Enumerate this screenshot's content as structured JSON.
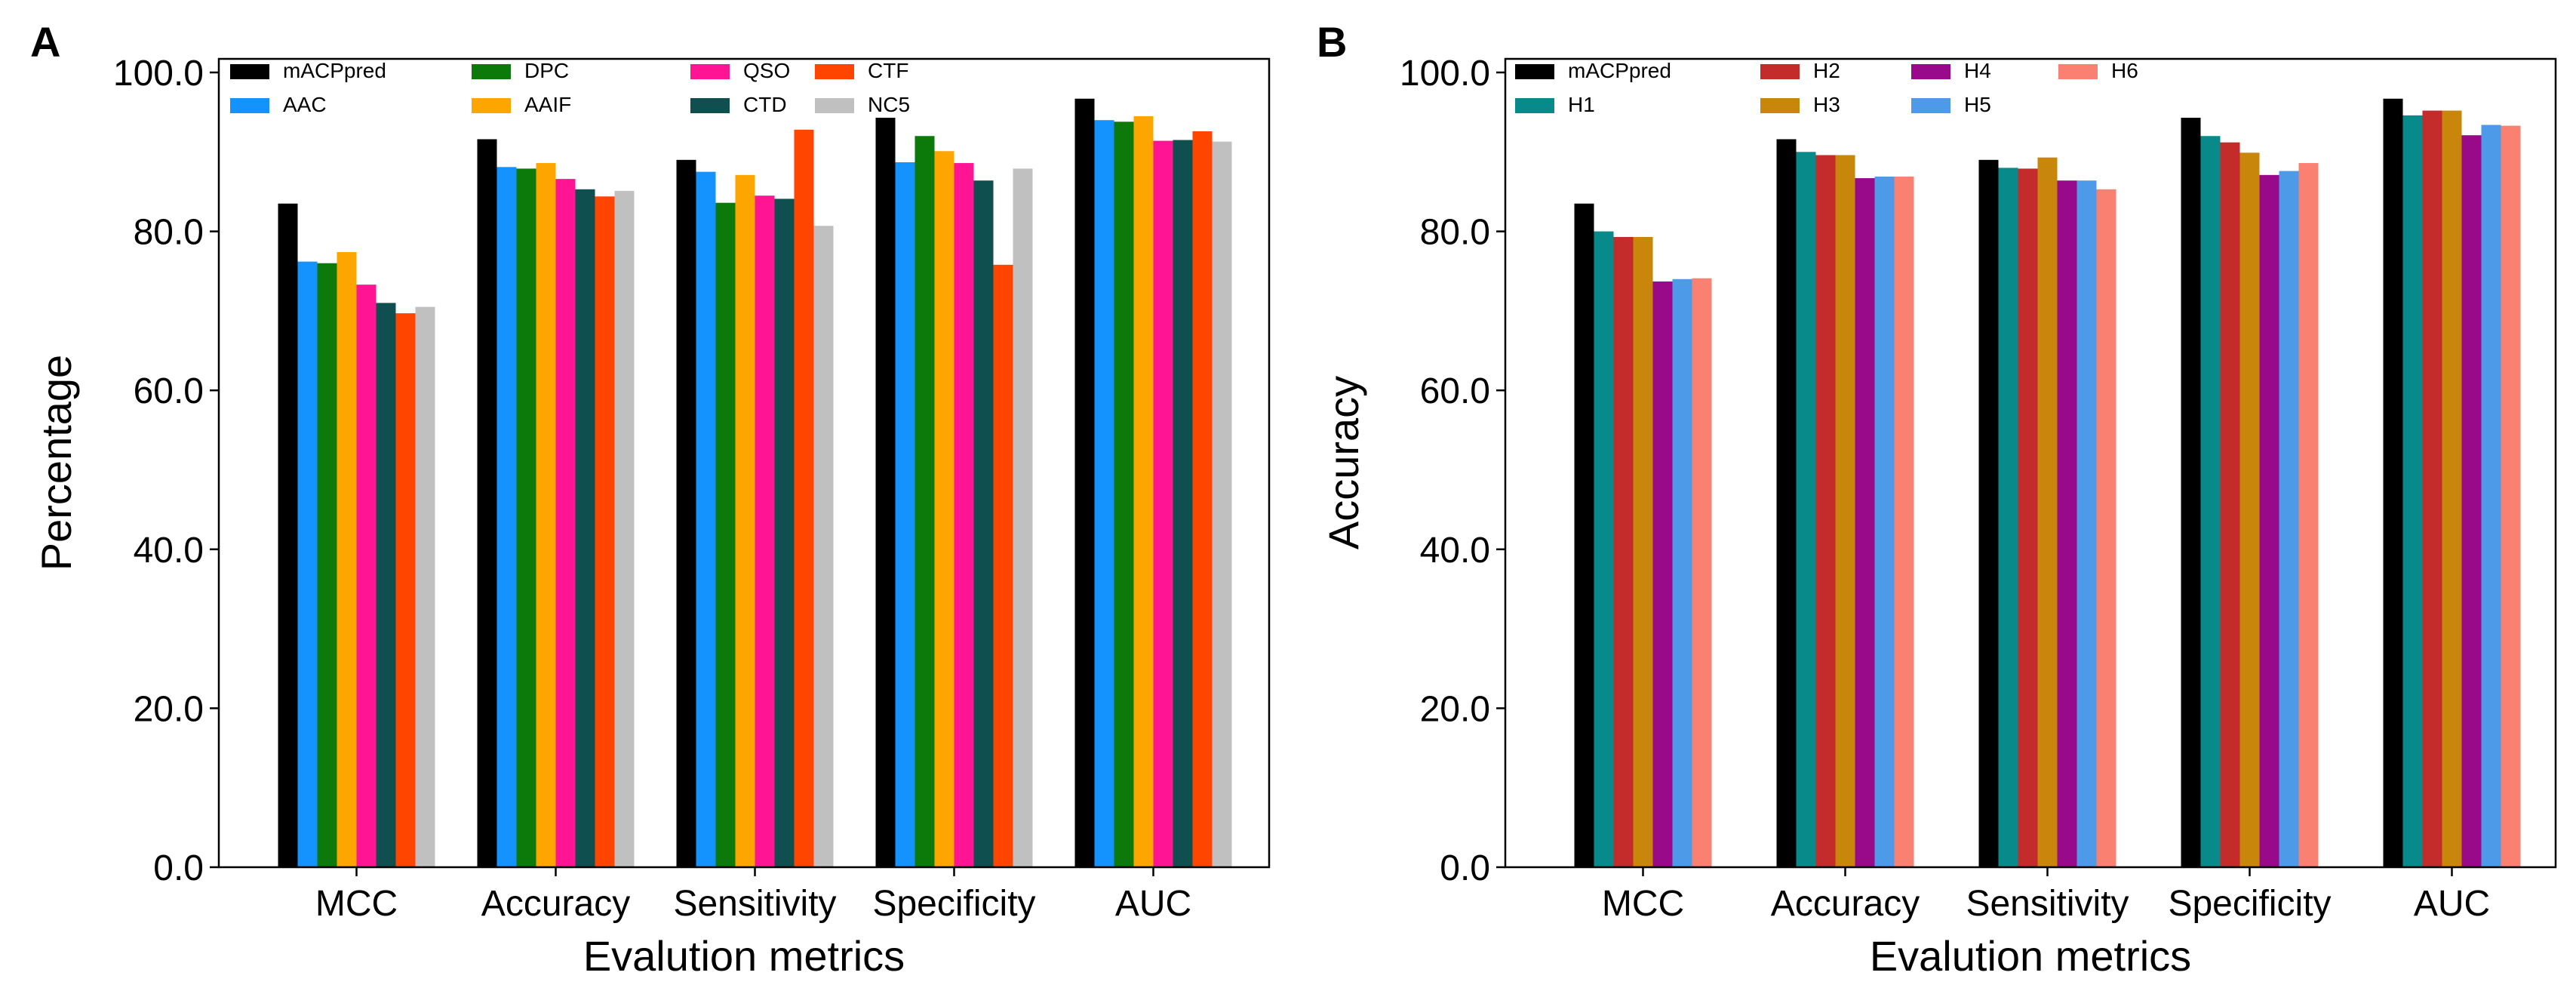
{
  "chart_data": [
    {
      "type": "bar",
      "panel_label": "A",
      "title": "",
      "xlabel": "Evalution metrics",
      "ylabel": "Percentage",
      "ylim": [
        0,
        100
      ],
      "yticks": [
        "0.0",
        "20.0",
        "40.0",
        "60.0",
        "80.0",
        "100.0"
      ],
      "grid": false,
      "legend_position": "top",
      "categories": [
        "MCC",
        "Accuracy",
        "Sensitivity",
        "Specificity",
        "AUC"
      ],
      "series": [
        {
          "name": "mACPpred",
          "color": "#000000",
          "values": [
            83.5,
            91.6,
            89.0,
            94.3,
            96.7
          ]
        },
        {
          "name": "AAC",
          "color": "#1493ff",
          "values": [
            76.2,
            88.1,
            87.5,
            88.7,
            94.0
          ]
        },
        {
          "name": "DPC",
          "color": "#0b7a0b",
          "values": [
            76.0,
            87.9,
            83.6,
            92.0,
            93.8
          ]
        },
        {
          "name": "AAIF",
          "color": "#ffa500",
          "values": [
            77.4,
            88.6,
            87.1,
            90.1,
            94.5
          ]
        },
        {
          "name": "QSO",
          "color": "#ff1493",
          "values": [
            73.3,
            86.6,
            84.5,
            88.6,
            91.4
          ]
        },
        {
          "name": "CTD",
          "color": "#0f4f4f",
          "values": [
            71.0,
            85.3,
            84.1,
            86.4,
            91.5
          ]
        },
        {
          "name": "CTF",
          "color": "#ff4500",
          "values": [
            69.7,
            84.4,
            92.8,
            75.8,
            92.6
          ]
        },
        {
          "name": "NC5",
          "color": "#c0c0c0",
          "values": [
            70.5,
            85.1,
            80.7,
            87.9,
            91.3
          ]
        }
      ]
    },
    {
      "type": "bar",
      "panel_label": "B",
      "title": "",
      "xlabel": "Evalution metrics",
      "ylabel": "Accuracy",
      "ylim": [
        0,
        100
      ],
      "yticks": [
        "0.0",
        "20.0",
        "40.0",
        "60.0",
        "80.0",
        "100.0"
      ],
      "grid": false,
      "legend_position": "top",
      "categories": [
        "MCC",
        "Accuracy",
        "Sensitivity",
        "Specificity",
        "AUC"
      ],
      "series": [
        {
          "name": "mACPpred",
          "color": "#000000",
          "values": [
            83.5,
            91.6,
            89.0,
            94.3,
            96.7
          ]
        },
        {
          "name": "H1",
          "color": "#088a8a",
          "values": [
            80.0,
            90.0,
            88.0,
            92.0,
            94.6
          ]
        },
        {
          "name": "H2",
          "color": "#c42b2b",
          "values": [
            79.3,
            89.6,
            87.9,
            91.2,
            95.2
          ]
        },
        {
          "name": "H3",
          "color": "#c8860a",
          "values": [
            79.3,
            89.6,
            89.3,
            89.9,
            95.2
          ]
        },
        {
          "name": "H4",
          "color": "#990a8a",
          "values": [
            73.7,
            86.7,
            86.4,
            87.1,
            92.1
          ]
        },
        {
          "name": "H5",
          "color": "#4d9be8",
          "values": [
            74.0,
            86.9,
            86.4,
            87.6,
            93.4
          ]
        },
        {
          "name": "H6",
          "color": "#fa8072",
          "values": [
            74.1,
            86.9,
            85.3,
            88.6,
            93.3
          ]
        }
      ]
    }
  ]
}
